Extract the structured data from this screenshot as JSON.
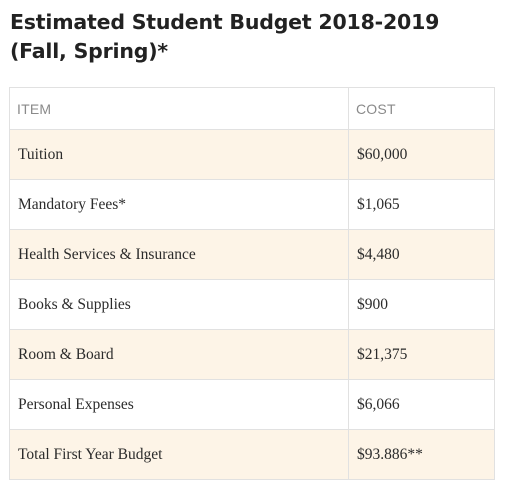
{
  "title": "Estimated Student Budget 2018-2019 (Fall, Spring)*",
  "table": {
    "headers": {
      "item": "ITEM",
      "cost": "COST"
    },
    "rows": [
      {
        "item": "Tuition",
        "cost": "$60,000"
      },
      {
        "item": "Mandatory Fees*",
        "cost": "$1,065"
      },
      {
        "item": "Health Services & Insurance",
        "cost": "$4,480"
      },
      {
        "item": "Books & Supplies",
        "cost": "$900"
      },
      {
        "item": "Room & Board",
        "cost": "$21,375"
      },
      {
        "item": "Personal Expenses",
        "cost": "$6,066"
      },
      {
        "item": "Total First Year Budget",
        "cost": "$93.886**"
      }
    ]
  },
  "colors": {
    "shaded_row": "#fdf4e7",
    "border": "#e1e1e1",
    "header_text": "#8a8a8a",
    "title_text": "#222222"
  }
}
